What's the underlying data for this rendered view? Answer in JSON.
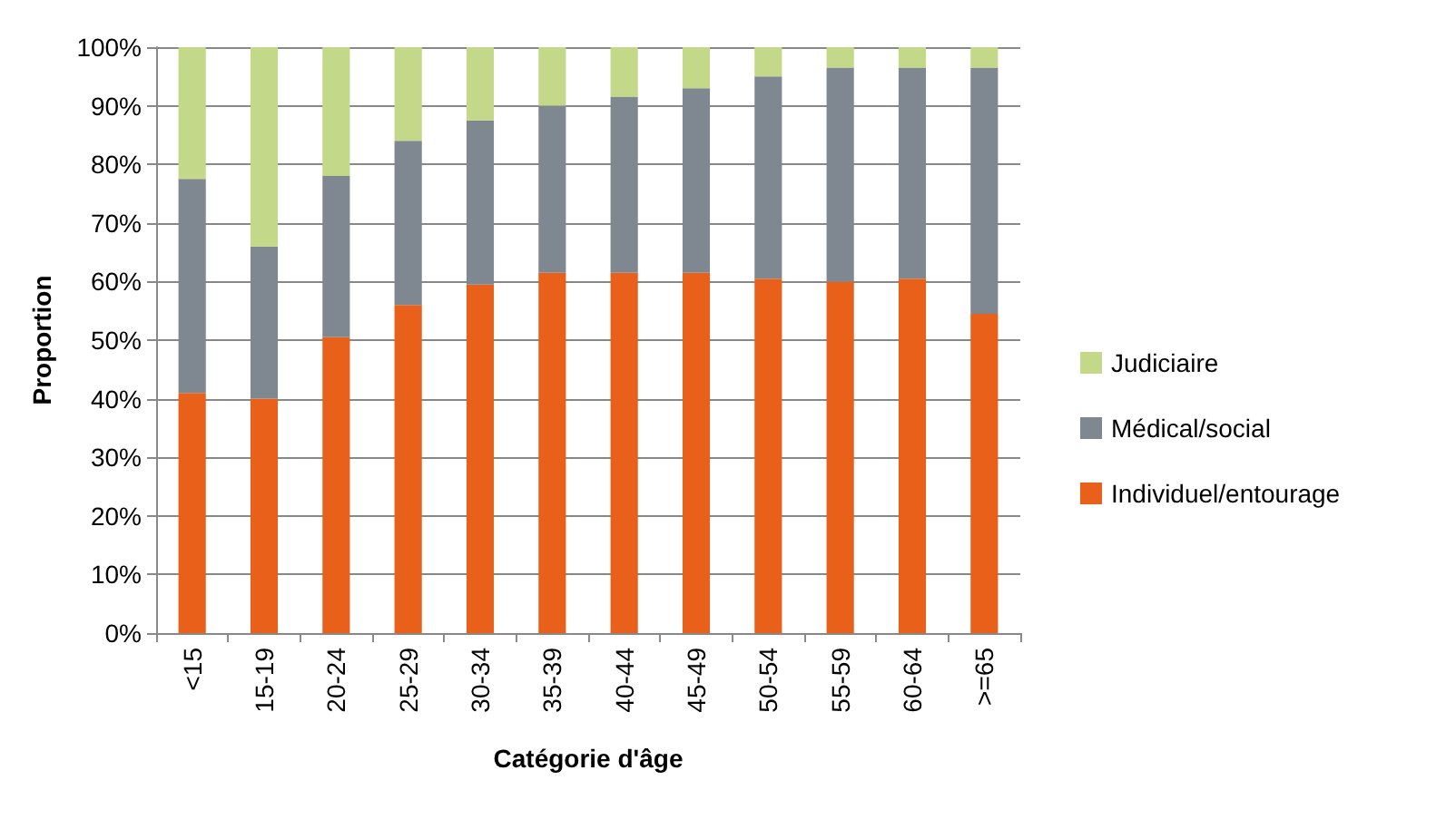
{
  "chart_data": {
    "type": "bar",
    "stacked": true,
    "xlabel": "Catégorie d'âge",
    "ylabel": "Proportion",
    "categories": [
      "<15",
      "15-19",
      "20-24",
      "25-29",
      "30-34",
      "35-39",
      "40-44",
      "45-49",
      "50-54",
      "55-59",
      "60-64",
      ">=65"
    ],
    "series": [
      {
        "name": "Individuel/entourage",
        "color": "#e8601a",
        "values": [
          41,
          40,
          50.5,
          56,
          59.5,
          61.5,
          61.5,
          61.5,
          60.5,
          60,
          60.5,
          54.5
        ]
      },
      {
        "name": "Médical/social",
        "color": "#7f8890",
        "values": [
          36.5,
          26,
          27.5,
          28,
          28,
          28.5,
          30,
          31.5,
          34.5,
          36.5,
          36,
          42
        ]
      },
      {
        "name": "Judiciaire",
        "color": "#c3d888",
        "values": [
          22.5,
          34,
          22,
          16,
          12.5,
          10,
          8.5,
          7,
          5,
          3.5,
          3.5,
          3.5
        ]
      }
    ],
    "ylim": [
      0,
      100
    ],
    "yticks": [
      {
        "value": 0,
        "label": "0%"
      },
      {
        "value": 10,
        "label": "10%"
      },
      {
        "value": 20,
        "label": "20%"
      },
      {
        "value": 30,
        "label": "30%"
      },
      {
        "value": 40,
        "label": "40%"
      },
      {
        "value": 50,
        "label": "50%"
      },
      {
        "value": 60,
        "label": "60%"
      },
      {
        "value": 70,
        "label": "70%"
      },
      {
        "value": 80,
        "label": "80%"
      },
      {
        "value": 90,
        "label": "90%"
      },
      {
        "value": 100,
        "label": "100%"
      }
    ],
    "grid": "y",
    "legend": "right"
  }
}
